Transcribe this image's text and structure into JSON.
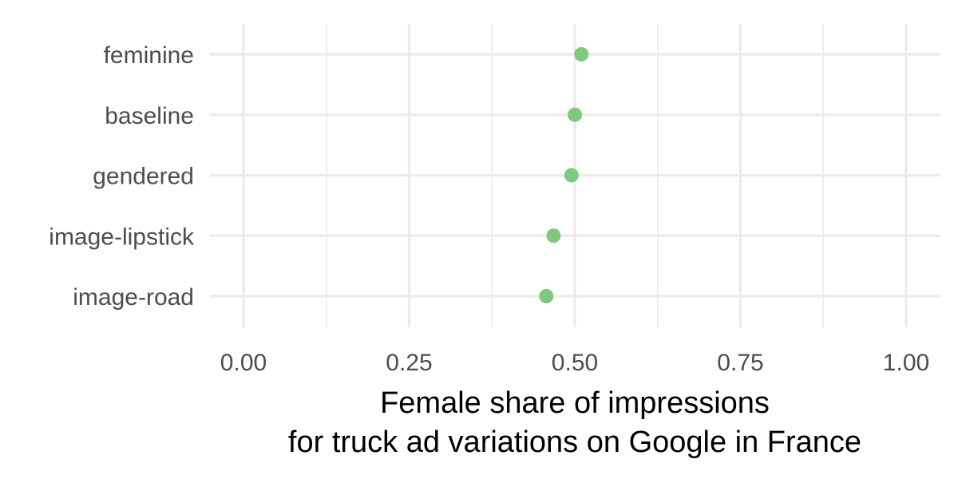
{
  "chart_data": {
    "type": "scatter",
    "orientation": "horizontal-dot",
    "title": "",
    "xlabel_lines": [
      "Female share of impressions",
      "for truck ad variations on Google in France"
    ],
    "ylabel": "",
    "xlim": [
      0,
      1
    ],
    "x_ticks": [
      0,
      0.25,
      0.5,
      0.75,
      1
    ],
    "x_tick_labels": [
      "0.00",
      "0.25",
      "0.50",
      "0.75",
      "1.00"
    ],
    "categories": [
      "feminine",
      "baseline",
      "gendered",
      "image-lipstick",
      "image-road"
    ],
    "values": [
      0.51,
      0.5,
      0.495,
      0.468,
      0.457
    ],
    "point_color": "#7fc97f",
    "grid": true,
    "legend": "none"
  }
}
